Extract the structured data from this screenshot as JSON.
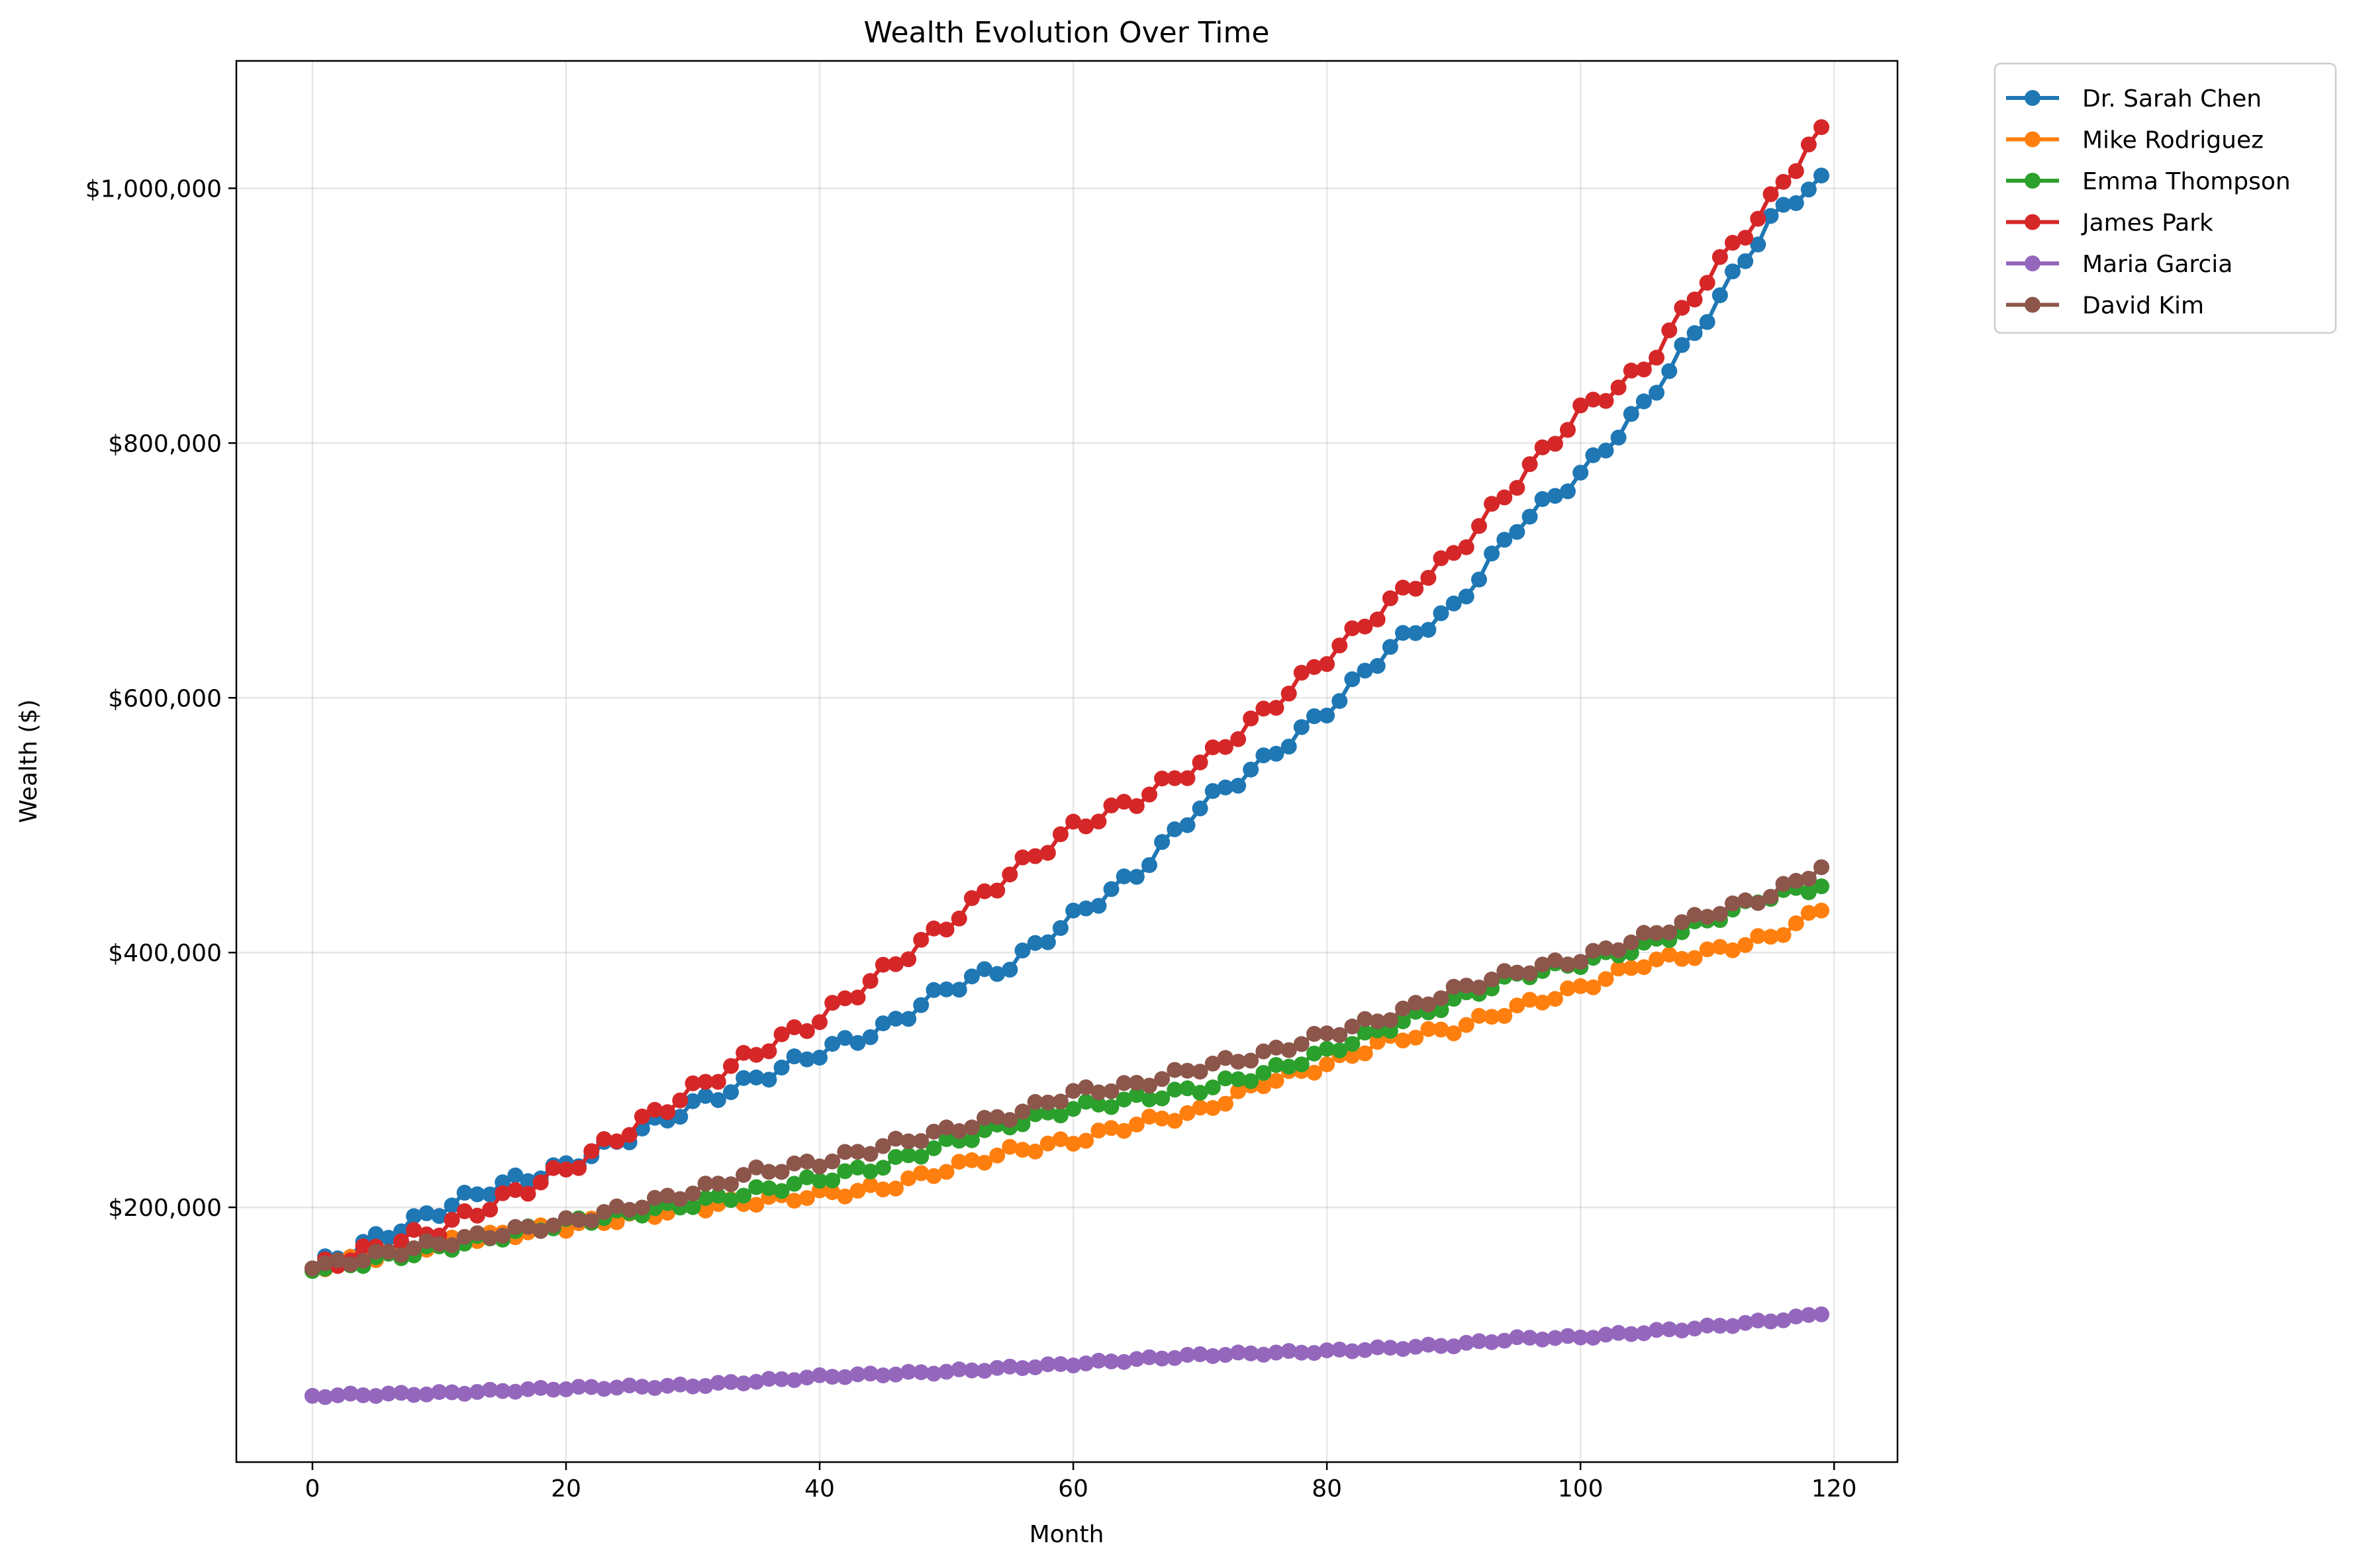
{
  "chart_data": {
    "type": "line",
    "title": "Wealth Evolution Over Time",
    "xlabel": "Month",
    "ylabel": "Wealth ($)",
    "xlim": [
      -6,
      125
    ],
    "ylim": [
      0,
      1100000
    ],
    "x_ticks": [
      0,
      20,
      40,
      60,
      80,
      100,
      120
    ],
    "x_tick_labels": [
      "0",
      "20",
      "40",
      "60",
      "80",
      "100",
      "120"
    ],
    "y_ticks": [
      200000,
      400000,
      600000,
      800000,
      1000000
    ],
    "y_tick_labels": [
      "$200,000",
      "$400,000",
      "$600,000",
      "$800,000",
      "$1,000,000"
    ],
    "grid": true,
    "legend_position": "outside-top-right",
    "x_start": 0,
    "x_end": 119,
    "series": [
      {
        "name": "Dr. Sarah Chen",
        "color": "#1f77b4",
        "marker": "circle",
        "anchors": [
          [
            0,
            152000
          ],
          [
            10,
            198000
          ],
          [
            14,
            215000
          ],
          [
            20,
            232000
          ],
          [
            30,
            280000
          ],
          [
            40,
            322000
          ],
          [
            45,
            340000
          ],
          [
            50,
            372000
          ],
          [
            55,
            390000
          ],
          [
            60,
            428000
          ],
          [
            65,
            462000
          ],
          [
            70,
            515000
          ],
          [
            75,
            550000
          ],
          [
            80,
            590000
          ],
          [
            85,
            640000
          ],
          [
            90,
            670000
          ],
          [
            95,
            735000
          ],
          [
            100,
            775000
          ],
          [
            105,
            830000
          ],
          [
            110,
            900000
          ],
          [
            115,
            975000
          ],
          [
            119,
            1010000
          ]
        ],
        "jitter": 5000
      },
      {
        "name": "Mike Rodriguez",
        "color": "#ff7f0e",
        "marker": "circle",
        "anchors": [
          [
            0,
            152000
          ],
          [
            10,
            172000
          ],
          [
            20,
            185000
          ],
          [
            30,
            200000
          ],
          [
            40,
            210000
          ],
          [
            45,
            215000
          ],
          [
            50,
            230000
          ],
          [
            55,
            244000
          ],
          [
            60,
            252000
          ],
          [
            65,
            266000
          ],
          [
            70,
            275000
          ],
          [
            75,
            298000
          ],
          [
            80,
            312000
          ],
          [
            85,
            332000
          ],
          [
            90,
            340000
          ],
          [
            95,
            357000
          ],
          [
            100,
            372000
          ],
          [
            105,
            392000
          ],
          [
            110,
            400000
          ],
          [
            115,
            412000
          ],
          [
            119,
            433000
          ]
        ],
        "jitter": 3500
      },
      {
        "name": "Emma Thompson",
        "color": "#2ca02c",
        "marker": "circle",
        "anchors": [
          [
            0,
            150000
          ],
          [
            10,
            168000
          ],
          [
            20,
            188000
          ],
          [
            30,
            203000
          ],
          [
            40,
            222000
          ],
          [
            45,
            233000
          ],
          [
            50,
            250000
          ],
          [
            55,
            265000
          ],
          [
            60,
            278000
          ],
          [
            65,
            285000
          ],
          [
            70,
            293000
          ],
          [
            75,
            305000
          ],
          [
            80,
            322000
          ],
          [
            85,
            342000
          ],
          [
            90,
            362000
          ],
          [
            95,
            382000
          ],
          [
            100,
            392000
          ],
          [
            105,
            405000
          ],
          [
            110,
            425000
          ],
          [
            115,
            445000
          ],
          [
            119,
            452000
          ]
        ],
        "jitter": 3500
      },
      {
        "name": "James Park",
        "color": "#d62728",
        "marker": "circle",
        "anchors": [
          [
            0,
            152000
          ],
          [
            10,
            183000
          ],
          [
            20,
            230000
          ],
          [
            30,
            292000
          ],
          [
            35,
            322000
          ],
          [
            40,
            348000
          ],
          [
            45,
            385000
          ],
          [
            50,
            422000
          ],
          [
            55,
            462000
          ],
          [
            60,
            498000
          ],
          [
            65,
            520000
          ],
          [
            70,
            548000
          ],
          [
            75,
            588000
          ],
          [
            80,
            632000
          ],
          [
            85,
            675000
          ],
          [
            90,
            712000
          ],
          [
            95,
            770000
          ],
          [
            100,
            825000
          ],
          [
            105,
            858000
          ],
          [
            110,
            930000
          ],
          [
            115,
            990000
          ],
          [
            119,
            1048000
          ]
        ],
        "jitter": 5500
      },
      {
        "name": "Maria Garcia",
        "color": "#9467bd",
        "marker": "circle",
        "anchors": [
          [
            0,
            52000
          ],
          [
            10,
            54000
          ],
          [
            20,
            58000
          ],
          [
            30,
            60000
          ],
          [
            40,
            67000
          ],
          [
            50,
            71000
          ],
          [
            60,
            77000
          ],
          [
            70,
            84000
          ],
          [
            80,
            87000
          ],
          [
            90,
            92000
          ],
          [
            95,
            97000
          ],
          [
            100,
            98000
          ],
          [
            105,
            102000
          ],
          [
            110,
            106000
          ],
          [
            115,
            111000
          ],
          [
            119,
            116000
          ]
        ],
        "jitter": 1200
      },
      {
        "name": "David Kim",
        "color": "#8c564b",
        "marker": "circle",
        "anchors": [
          [
            0,
            152000
          ],
          [
            10,
            172000
          ],
          [
            20,
            188000
          ],
          [
            30,
            212000
          ],
          [
            35,
            228000
          ],
          [
            40,
            235000
          ],
          [
            45,
            248000
          ],
          [
            50,
            260000
          ],
          [
            55,
            272000
          ],
          [
            60,
            290000
          ],
          [
            65,
            296000
          ],
          [
            70,
            310000
          ],
          [
            75,
            320000
          ],
          [
            80,
            336000
          ],
          [
            85,
            350000
          ],
          [
            90,
            370000
          ],
          [
            95,
            385000
          ],
          [
            100,
            395000
          ],
          [
            105,
            412000
          ],
          [
            110,
            430000
          ],
          [
            115,
            445000
          ],
          [
            119,
            467000
          ]
        ],
        "jitter": 3500
      }
    ]
  }
}
